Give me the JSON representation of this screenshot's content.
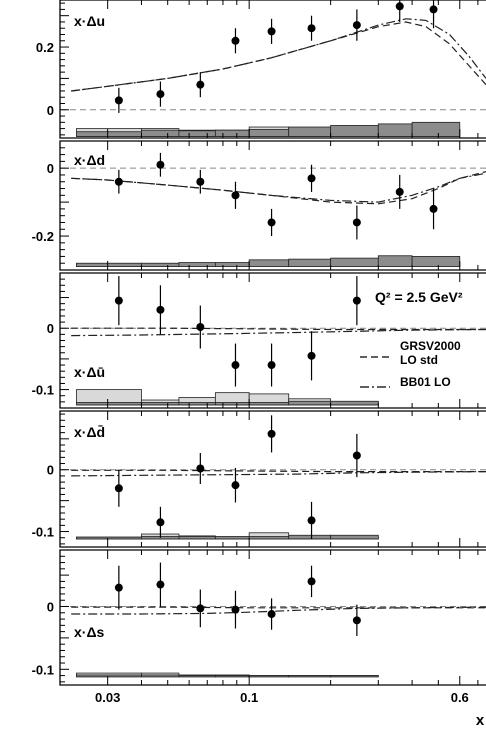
{
  "chart_data": {
    "type": "scatter",
    "x_axis": {
      "label": "x",
      "scale": "log",
      "range": [
        0.02,
        0.75
      ],
      "ticks": [
        {
          "value": 0.03,
          "label": "0.03"
        },
        {
          "value": 0.1,
          "label": "0.1"
        },
        {
          "value": 0.6,
          "label": "0.6"
        }
      ]
    },
    "annotation": "Q² = 2.5 GeV²",
    "legend": {
      "placement": "right",
      "entries": [
        {
          "style": "dashed",
          "label_lines": [
            "GRSV2000",
            "LO std"
          ]
        },
        {
          "style": "dashdot",
          "label_lines": [
            "BB01 LO"
          ]
        }
      ]
    },
    "bins": [
      0.023,
      0.04,
      0.055,
      0.075,
      0.1,
      0.14,
      0.2,
      0.3,
      0.4,
      0.6
    ],
    "panels": [
      {
        "label": "x·Δu",
        "ylim": [
          -0.09,
          0.35
        ],
        "yticks": [
          {
            "value": 0,
            "label": "0"
          },
          {
            "value": 0.2,
            "label": "0.2"
          }
        ],
        "points": [
          {
            "x": 0.033,
            "y": 0.03,
            "err": 0.04
          },
          {
            "x": 0.047,
            "y": 0.05,
            "err": 0.04
          },
          {
            "x": 0.066,
            "y": 0.08,
            "err": 0.04
          },
          {
            "x": 0.089,
            "y": 0.22,
            "err": 0.04
          },
          {
            "x": 0.121,
            "y": 0.25,
            "err": 0.04
          },
          {
            "x": 0.17,
            "y": 0.26,
            "err": 0.04
          },
          {
            "x": 0.25,
            "y": 0.27,
            "err": 0.05
          },
          {
            "x": 0.36,
            "y": 0.33,
            "err": 0.05
          },
          {
            "x": 0.48,
            "y": 0.32,
            "err": 0.06
          }
        ],
        "curves": [
          {
            "style": "dashed",
            "x": [
              0.022,
              0.03,
              0.05,
              0.08,
              0.12,
              0.2,
              0.3,
              0.38,
              0.45,
              0.55,
              0.65,
              0.75
            ],
            "y": [
              0.06,
              0.075,
              0.1,
              0.13,
              0.165,
              0.22,
              0.265,
              0.28,
              0.265,
              0.21,
              0.14,
              0.08
            ]
          },
          {
            "style": "dashdot",
            "x": [
              0.022,
              0.03,
              0.05,
              0.08,
              0.12,
              0.2,
              0.3,
              0.38,
              0.45,
              0.55,
              0.65,
              0.75
            ],
            "y": [
              0.06,
              0.075,
              0.1,
              0.13,
              0.165,
              0.22,
              0.27,
              0.29,
              0.285,
              0.24,
              0.17,
              0.1
            ]
          }
        ],
        "sys_light": [
          0.025,
          0.025,
          0.02,
          0.02,
          0.03,
          0.02,
          0.025,
          0.02,
          0.02
        ],
        "sys_dark": [
          0.015,
          0.02,
          0.018,
          0.02,
          0.022,
          0.03,
          0.035,
          0.04,
          0.045
        ],
        "sys_base": -0.085
      },
      {
        "label": "x·Δd",
        "ylim": [
          -0.3,
          0.08
        ],
        "yticks": [
          {
            "value": 0,
            "label": "0"
          },
          {
            "value": -0.2,
            "label": "-0.2"
          }
        ],
        "points": [
          {
            "x": 0.033,
            "y": -0.04,
            "err": 0.035
          },
          {
            "x": 0.047,
            "y": 0.01,
            "err": 0.035
          },
          {
            "x": 0.066,
            "y": -0.04,
            "err": 0.035
          },
          {
            "x": 0.089,
            "y": -0.08,
            "err": 0.04
          },
          {
            "x": 0.121,
            "y": -0.16,
            "err": 0.04
          },
          {
            "x": 0.17,
            "y": -0.03,
            "err": 0.04
          },
          {
            "x": 0.25,
            "y": -0.16,
            "err": 0.05
          },
          {
            "x": 0.36,
            "y": -0.07,
            "err": 0.05
          },
          {
            "x": 0.48,
            "y": -0.12,
            "err": 0.06
          }
        ],
        "curves": [
          {
            "style": "dashed",
            "x": [
              0.022,
              0.03,
              0.05,
              0.08,
              0.12,
              0.2,
              0.3,
              0.4,
              0.5,
              0.6,
              0.75
            ],
            "y": [
              -0.03,
              -0.035,
              -0.05,
              -0.065,
              -0.08,
              -0.1,
              -0.105,
              -0.09,
              -0.06,
              -0.03,
              -0.01
            ]
          },
          {
            "style": "dashdot",
            "x": [
              0.022,
              0.03,
              0.05,
              0.08,
              0.12,
              0.2,
              0.3,
              0.4,
              0.5,
              0.6,
              0.75
            ],
            "y": [
              -0.03,
              -0.035,
              -0.05,
              -0.065,
              -0.08,
              -0.095,
              -0.1,
              -0.08,
              -0.055,
              -0.03,
              -0.015
            ]
          }
        ],
        "sys_light": [
          0.006,
          0.006,
          0.006,
          0.006,
          0.01,
          0.01,
          0.01,
          0.012,
          0.012
        ],
        "sys_dark": [
          0.01,
          0.01,
          0.012,
          0.012,
          0.02,
          0.022,
          0.025,
          0.032,
          0.03
        ],
        "sys_base": -0.29
      },
      {
        "label": "x·Δū",
        "ylim": [
          -0.13,
          0.09
        ],
        "yticks": [
          {
            "value": 0,
            "label": "0"
          },
          {
            "value": -0.1,
            "label": "-0.1"
          }
        ],
        "points": [
          {
            "x": 0.033,
            "y": 0.045,
            "err": 0.04
          },
          {
            "x": 0.047,
            "y": 0.03,
            "err": 0.04
          },
          {
            "x": 0.066,
            "y": 0.002,
            "err": 0.035
          },
          {
            "x": 0.089,
            "y": -0.06,
            "err": 0.035
          },
          {
            "x": 0.121,
            "y": -0.06,
            "err": 0.035
          },
          {
            "x": 0.17,
            "y": -0.045,
            "err": 0.04
          },
          {
            "x": 0.25,
            "y": 0.045,
            "err": 0.04
          }
        ],
        "curves": [
          {
            "style": "dashed",
            "x": [
              0.022,
              0.05,
              0.1,
              0.2,
              0.3,
              0.4,
              0.75
            ],
            "y": [
              0.0,
              0.0,
              -0.001,
              -0.002,
              -0.002,
              -0.002,
              -0.002
            ]
          },
          {
            "style": "dashdot",
            "x": [
              0.022,
              0.04,
              0.08,
              0.15,
              0.25,
              0.4,
              0.75
            ],
            "y": [
              -0.012,
              -0.011,
              -0.009,
              -0.007,
              -0.005,
              -0.003,
              -0.002
            ]
          }
        ],
        "sys_light": [
          0.025,
          0.008,
          0.012,
          0.02,
          0.018,
          0.01,
          0.005
        ],
        "sys_dark": [
          0.004,
          0.004,
          0.004,
          0.004,
          0.004,
          0.006,
          0.006
        ],
        "sys_base": -0.125
      },
      {
        "label": "x·Δd̄",
        "ylim": [
          -0.125,
          0.095
        ],
        "yticks": [
          {
            "value": 0,
            "label": "0"
          },
          {
            "value": -0.1,
            "label": "-0.1"
          }
        ],
        "points": [
          {
            "x": 0.033,
            "y": -0.03,
            "err": 0.03
          },
          {
            "x": 0.047,
            "y": -0.085,
            "err": 0.025
          },
          {
            "x": 0.066,
            "y": 0.002,
            "err": 0.025
          },
          {
            "x": 0.089,
            "y": -0.025,
            "err": 0.028
          },
          {
            "x": 0.121,
            "y": 0.058,
            "err": 0.03
          },
          {
            "x": 0.17,
            "y": -0.082,
            "err": 0.03
          },
          {
            "x": 0.25,
            "y": 0.023,
            "err": 0.035
          }
        ],
        "curves": [
          {
            "style": "dashed",
            "x": [
              0.022,
              0.05,
              0.1,
              0.2,
              0.3,
              0.4,
              0.75
            ],
            "y": [
              -0.001,
              -0.001,
              -0.002,
              -0.003,
              -0.003,
              -0.003,
              -0.003
            ]
          },
          {
            "style": "dashdot",
            "x": [
              0.022,
              0.04,
              0.08,
              0.15,
              0.25,
              0.4,
              0.75
            ],
            "y": [
              -0.01,
              -0.009,
              -0.008,
              -0.007,
              -0.005,
              -0.004,
              -0.003
            ]
          }
        ],
        "sys_light": [
          0.003,
          0.008,
          0.005,
          0.003,
          0.01,
          0.004,
          0.003
        ],
        "sys_dark": [
          0.003,
          0.004,
          0.004,
          0.004,
          0.004,
          0.006,
          0.006
        ],
        "sys_base": -0.112
      },
      {
        "label": "x·Δs",
        "ylim": [
          -0.125,
          0.09
        ],
        "yticks": [
          {
            "value": 0,
            "label": "0"
          },
          {
            "value": -0.1,
            "label": "-0.1"
          }
        ],
        "points": [
          {
            "x": 0.033,
            "y": 0.03,
            "err": 0.035
          },
          {
            "x": 0.047,
            "y": 0.035,
            "err": 0.035
          },
          {
            "x": 0.066,
            "y": -0.003,
            "err": 0.03
          },
          {
            "x": 0.089,
            "y": -0.005,
            "err": 0.03
          },
          {
            "x": 0.121,
            "y": -0.012,
            "err": 0.025
          },
          {
            "x": 0.17,
            "y": 0.04,
            "err": 0.025
          },
          {
            "x": 0.25,
            "y": -0.022,
            "err": 0.025
          }
        ],
        "curves": [
          {
            "style": "dashed",
            "x": [
              0.022,
              0.05,
              0.1,
              0.2,
              0.3,
              0.4,
              0.75
            ],
            "y": [
              -0.001,
              -0.001,
              -0.002,
              -0.002,
              -0.002,
              -0.002,
              -0.002
            ]
          },
          {
            "style": "dashdot",
            "x": [
              0.022,
              0.04,
              0.07,
              0.1,
              0.15,
              0.25,
              0.4,
              0.75
            ],
            "y": [
              -0.012,
              -0.012,
              -0.011,
              -0.009,
              -0.006,
              -0.003,
              -0.002,
              -0.001
            ]
          }
        ],
        "sys_light": [
          0.006,
          0.006,
          0.003,
          0.003,
          0.002,
          0.002,
          0.002
        ],
        "sys_dark": [
          0.003,
          0.003,
          0.002,
          0.002,
          0.002,
          0.002,
          0.002
        ],
        "sys_base": -0.112
      }
    ]
  }
}
